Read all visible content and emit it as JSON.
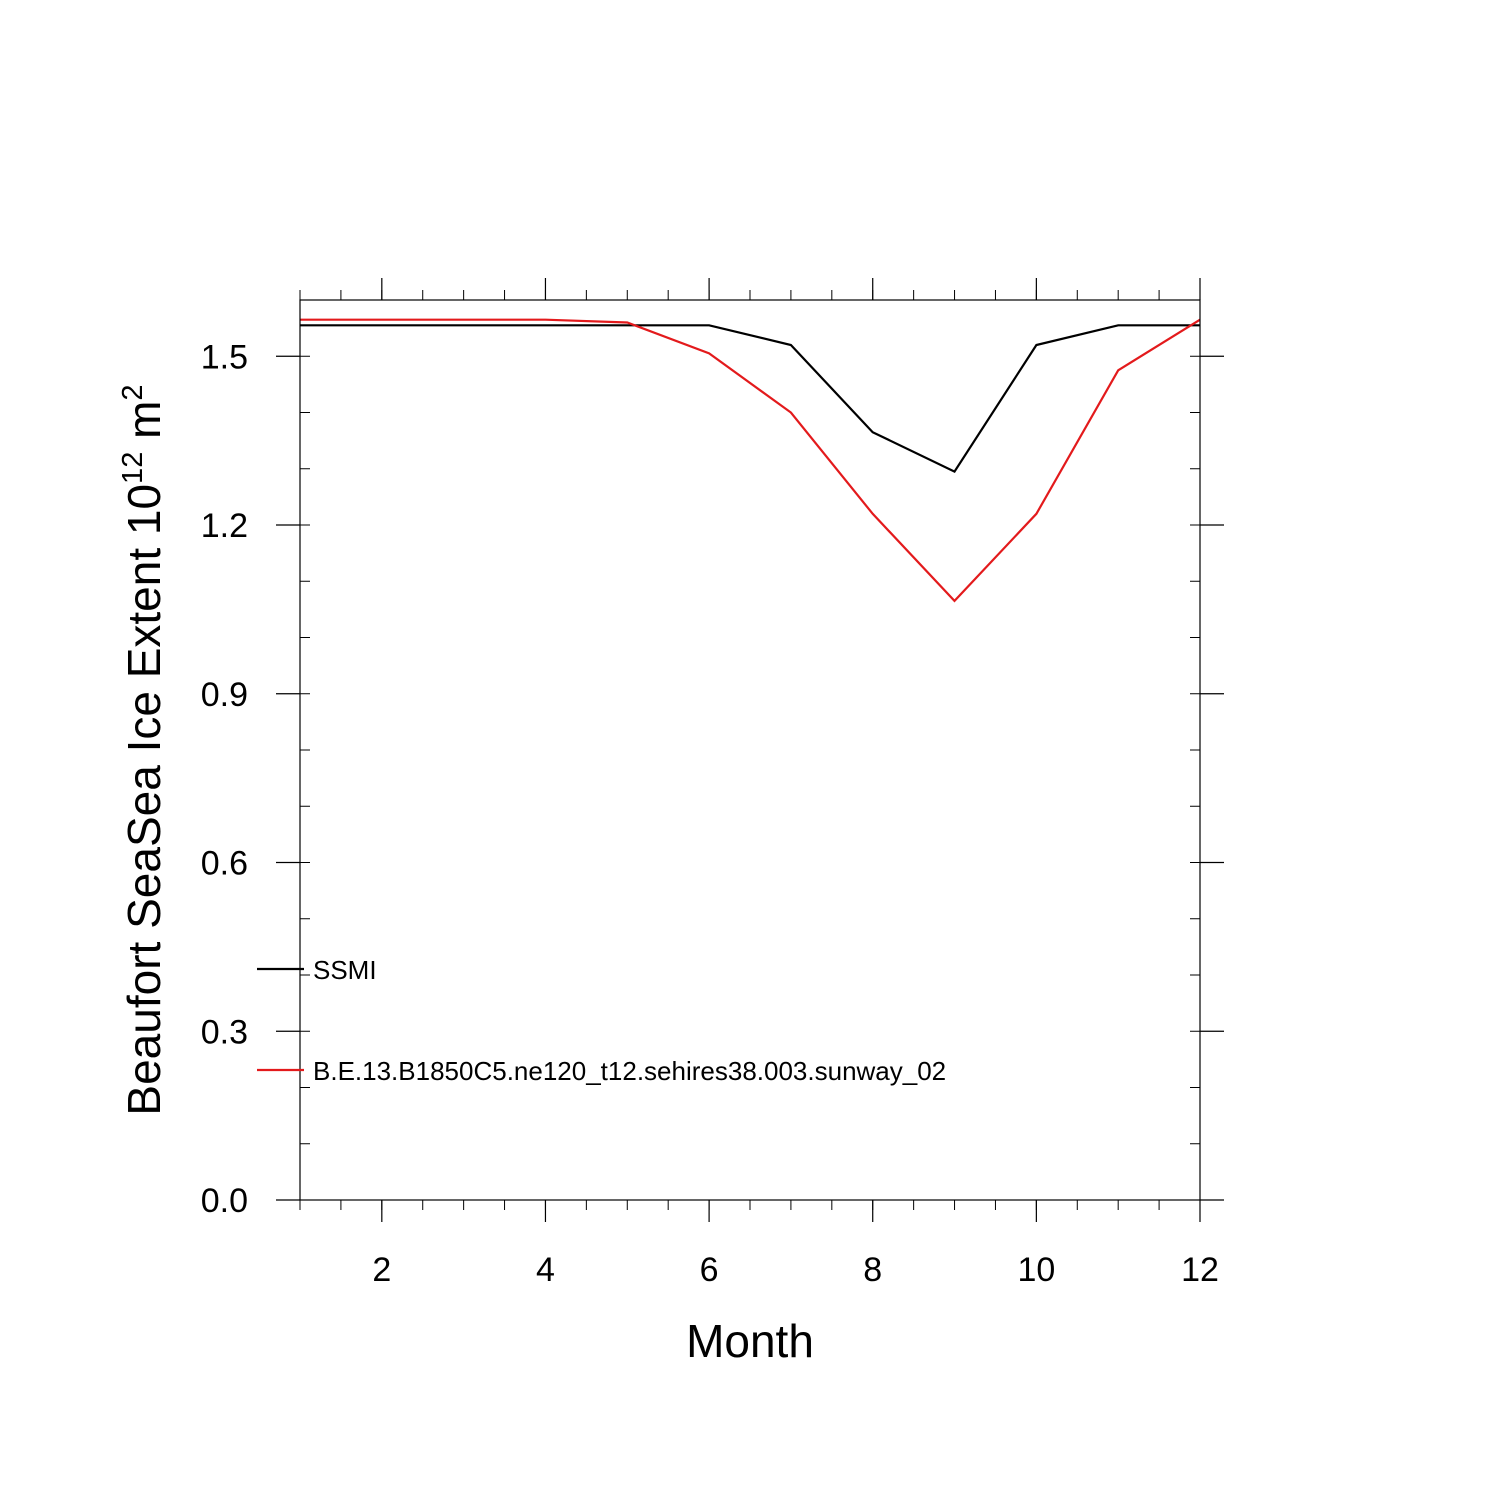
{
  "chart_data": {
    "type": "line",
    "xlabel": "Month",
    "ylabel": {
      "base": "Beaufort SeaSea Ice Extent 10",
      "exp1": "12",
      "unit": " m",
      "exp2": "2"
    },
    "xlim": [
      1,
      12
    ],
    "ylim": [
      0,
      1.6
    ],
    "x_ticks": [
      2,
      4,
      6,
      8,
      10,
      12
    ],
    "y_ticks": [
      0.0,
      0.3,
      0.6,
      0.9,
      1.2,
      1.5
    ],
    "y_tick_labels": [
      "0.0",
      "0.3",
      "0.6",
      "0.9",
      "1.2",
      "1.5"
    ],
    "x_minor_step": 0.5,
    "y_minor_step": 0.1,
    "legend_position": "lower-left",
    "x": [
      1,
      2,
      3,
      4,
      5,
      6,
      7,
      8,
      9,
      10,
      11,
      12
    ],
    "series": [
      {
        "name": "SSMI",
        "color": "#000000",
        "values": [
          1.555,
          1.555,
          1.555,
          1.555,
          1.555,
          1.555,
          1.52,
          1.365,
          1.295,
          1.52,
          1.555,
          1.555
        ]
      },
      {
        "name": "B.E.13.B1850C5.ne120_t12.sehires38.003.sunway_02",
        "color": "#e31a1c",
        "values": [
          1.565,
          1.565,
          1.565,
          1.565,
          1.56,
          1.505,
          1.4,
          1.22,
          1.065,
          1.22,
          1.475,
          1.565
        ]
      }
    ]
  }
}
